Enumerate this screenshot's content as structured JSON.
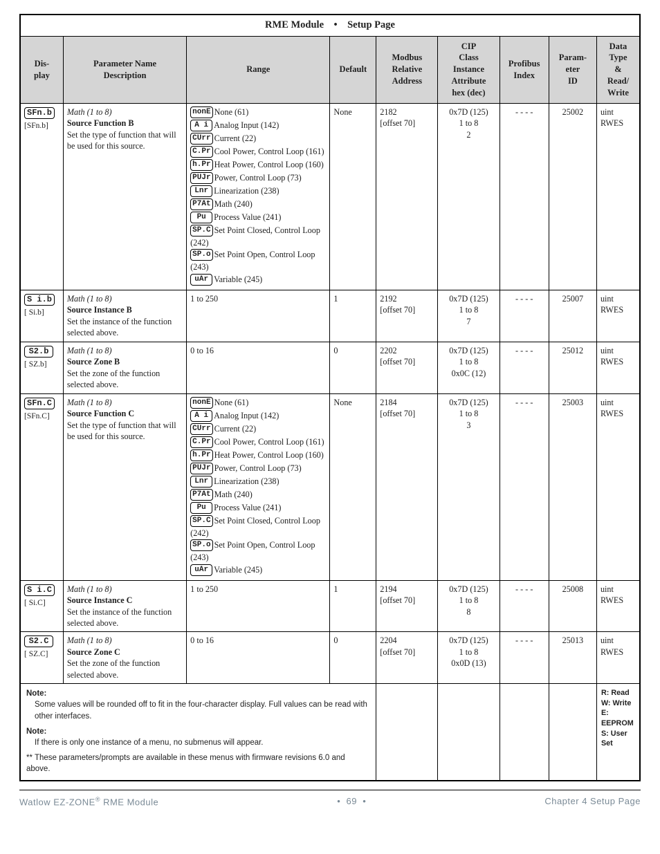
{
  "title": {
    "left": "RME Module",
    "bullet": "•",
    "right": "Setup Page"
  },
  "headers": {
    "display": "Dis-\nplay",
    "param": "Parameter Name\nDescription",
    "range": "Range",
    "default": "Default",
    "modbus": "Modbus\nRelative\nAddress",
    "cip": "CIP\nClass\nInstance\nAttribute\nhex (dec)",
    "profibus": "Profibus\nIndex",
    "pid": "Param-\neter\nID",
    "dtype": "Data\nType\n&\nRead/\nWrite"
  },
  "range_options": [
    {
      "code": "nonE",
      "label": "None (61)"
    },
    {
      "code": "A i",
      "label": "Analog Input (142)"
    },
    {
      "code": "CUrr",
      "label": "Current (22)"
    },
    {
      "code": "C.Pr",
      "label": "Cool Power, Control Loop (161)"
    },
    {
      "code": "h.Pr",
      "label": "Heat Power, Control Loop (160)"
    },
    {
      "code": "PUJr",
      "label": "Power, Control Loop (73)"
    },
    {
      "code": "Lnr",
      "label": "Linearization (238)"
    },
    {
      "code": "P7At",
      "label": "Math (240)"
    },
    {
      "code": "Pu",
      "label": "Process Value (241)"
    },
    {
      "code": "SP.C",
      "label": "Set Point Closed, Control Loop (242)"
    },
    {
      "code": "SP.o",
      "label": "Set Point Open, Control Loop (243)"
    },
    {
      "code": "uAr",
      "label": "Variable (245)"
    }
  ],
  "rows": [
    {
      "disp_seg": "SFn.b",
      "disp_plain": "[SFn.b]",
      "param_head": "Math (1 to 8)",
      "param_bold": "Source Function B",
      "param_body": "Set the type of function that will be used for this source.",
      "range_kind": "options",
      "default": "None",
      "modbus_l1": "2182",
      "modbus_l2": "[offset 70]",
      "cip_l1": "0x7D (125)",
      "cip_l2": "1 to 8",
      "cip_l3": "2",
      "profibus": "- - - -",
      "pid": "25002",
      "dtype_l1": "uint",
      "dtype_l2": "RWES"
    },
    {
      "disp_seg": "S i.b",
      "disp_plain": "[ Si.b]",
      "param_head": "Math (1 to 8)",
      "param_bold": "Source Instance B",
      "param_body": "Set the instance of the function selected above.",
      "range_kind": "text",
      "range_text": "1 to 250",
      "default": "1",
      "modbus_l1": "2192",
      "modbus_l2": "[offset 70]",
      "cip_l1": "0x7D (125)",
      "cip_l2": "1 to 8",
      "cip_l3": "7",
      "profibus": "- - - -",
      "pid": "25007",
      "dtype_l1": "uint",
      "dtype_l2": "RWES"
    },
    {
      "disp_seg": "S2.b",
      "disp_plain": "[ SZ.b]",
      "param_head": "Math (1 to 8)",
      "param_bold": "Source Zone B",
      "param_body": "Set the zone of the function selected above.",
      "range_kind": "text",
      "range_text": "0 to 16",
      "default": "0",
      "modbus_l1": "2202",
      "modbus_l2": "[offset 70]",
      "cip_l1": "0x7D (125)",
      "cip_l2": "1 to 8",
      "cip_l3": "0x0C (12)",
      "profibus": "- - - -",
      "pid": "25012",
      "dtype_l1": "uint",
      "dtype_l2": "RWES"
    },
    {
      "disp_seg": "SFn.C",
      "disp_plain": "[SFn.C]",
      "param_head": "Math (1 to 8)",
      "param_bold": "Source Function C",
      "param_body": "Set the type of function that will be used for this source.",
      "range_kind": "options",
      "default": "None",
      "modbus_l1": "2184",
      "modbus_l2": "[offset 70]",
      "cip_l1": "0x7D (125)",
      "cip_l2": "1 to 8",
      "cip_l3": "3",
      "profibus": "- - - -",
      "pid": "25003",
      "dtype_l1": "uint",
      "dtype_l2": "RWES"
    },
    {
      "disp_seg": "S i.C",
      "disp_plain": "[ Si.C]",
      "param_head": "Math (1 to 8)",
      "param_bold": "Source Instance C",
      "param_body": "Set the instance of the function selected above.",
      "range_kind": "text",
      "range_text": "1 to 250",
      "default": "1",
      "modbus_l1": "2194",
      "modbus_l2": "[offset 70]",
      "cip_l1": "0x7D (125)",
      "cip_l2": "1 to 8",
      "cip_l3": "8",
      "profibus": "- - - -",
      "pid": "25008",
      "dtype_l1": "uint",
      "dtype_l2": "RWES"
    },
    {
      "disp_seg": "S2.C",
      "disp_plain": "[ SZ.C]",
      "param_head": "Math (1 to 8)",
      "param_bold": "Source Zone C",
      "param_body": "Set the zone of the function selected above.",
      "range_kind": "text",
      "range_text": "0 to 16",
      "default": "0",
      "modbus_l1": "2204",
      "modbus_l2": "[offset 70]",
      "cip_l1": "0x7D (125)",
      "cip_l2": "1 to 8",
      "cip_l3": "0x0D (13)",
      "profibus": "- - - -",
      "pid": "25013",
      "dtype_l1": "uint",
      "dtype_l2": "RWES"
    }
  ],
  "notes": {
    "h1": "Note:",
    "n1": "Some values will be rounded off to fit in the four-character display. Full values can be read with other interfaces.",
    "h2": "Note:",
    "n2": "If there is only one instance of a menu, no submenus will appear.",
    "n3": "** These parameters/prompts are available in these menus with firmware revisions 6.0 and above."
  },
  "legend": {
    "r": "R: Read",
    "w": "W: Write",
    "e": "E: EEPROM",
    "s": "S: User Set"
  },
  "footer": {
    "left1": "Watlow EZ-ZONE",
    "left2": " RME Module",
    "mid_bullet": "•",
    "mid_page": "69",
    "right": "Chapter 4 Setup Page"
  }
}
